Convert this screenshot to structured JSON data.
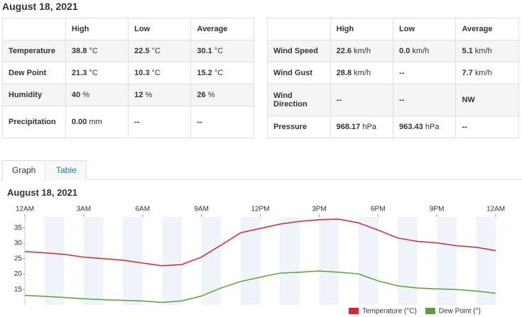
{
  "header": {
    "title": "August 18, 2021"
  },
  "left_table": {
    "columns": [
      "High",
      "Low",
      "Average"
    ],
    "rows": [
      {
        "label": "Temperature",
        "cells": [
          {
            "value": "38.8",
            "unit": "°C"
          },
          {
            "value": "22.5",
            "unit": "°C"
          },
          {
            "value": "30.1",
            "unit": "°C"
          }
        ]
      },
      {
        "label": "Dew Point",
        "cells": [
          {
            "value": "21.3",
            "unit": "°C"
          },
          {
            "value": "10.3",
            "unit": "°C"
          },
          {
            "value": "15.2",
            "unit": "°C"
          }
        ]
      },
      {
        "label": "Humidity",
        "cells": [
          {
            "value": "40",
            "unit": "%"
          },
          {
            "value": "12",
            "unit": "%"
          },
          {
            "value": "26",
            "unit": "%"
          }
        ]
      },
      {
        "label": "Precipitation",
        "cells": [
          {
            "value": "0.00",
            "unit": "mm"
          },
          {
            "value": "--"
          },
          {
            "value": "--"
          }
        ]
      }
    ]
  },
  "right_table": {
    "columns": [
      "High",
      "Low",
      "Average"
    ],
    "rows": [
      {
        "label": "Wind Speed",
        "cells": [
          {
            "value": "22.6",
            "unit": "km/h"
          },
          {
            "value": "0.0",
            "unit": "km/h"
          },
          {
            "value": "5.1",
            "unit": "km/h"
          }
        ]
      },
      {
        "label": "Wind Gust",
        "cells": [
          {
            "value": "28.8",
            "unit": "km/h"
          },
          {
            "value": "--"
          },
          {
            "value": "7.7",
            "unit": "km/h"
          }
        ]
      },
      {
        "label": "Wind Direction",
        "cells": [
          {
            "value": "--"
          },
          {
            "value": "--"
          },
          {
            "value": "NW"
          }
        ]
      },
      {
        "label": "Pressure",
        "cells": [
          {
            "value": "968.17",
            "unit": "hPa"
          },
          {
            "value": "963.43",
            "unit": "hPa"
          },
          {
            "value": "--"
          }
        ]
      }
    ]
  },
  "tabs": [
    "Graph",
    "Table"
  ],
  "chart_data": {
    "type": "line",
    "title": "August 18, 2021",
    "x": [
      0,
      1,
      2,
      3,
      4,
      5,
      6,
      7,
      8,
      9,
      10,
      11,
      12,
      13,
      14,
      15,
      16,
      17,
      18,
      19,
      20,
      21,
      22,
      23,
      24
    ],
    "series": [
      {
        "name": "Temperature (°C)",
        "color": "#d7262f",
        "values": [
          27.3,
          26.9,
          26.4,
          25.5,
          25.0,
          24.5,
          23.6,
          22.7,
          23.1,
          25.5,
          29.4,
          33.4,
          34.8,
          36.2,
          37.1,
          37.6,
          37.8,
          36.6,
          34.3,
          31.7,
          30.6,
          30.1,
          29.2,
          28.7,
          27.6
        ]
      },
      {
        "name": "Dew Point (°)",
        "color": "#5a9e3e",
        "values": [
          13.1,
          12.8,
          12.4,
          12.0,
          11.7,
          11.5,
          11.3,
          10.8,
          11.3,
          12.9,
          15.5,
          17.6,
          19.0,
          20.3,
          20.6,
          21.0,
          20.6,
          20.1,
          17.8,
          16.2,
          15.5,
          15.2,
          15.0,
          14.5,
          13.8
        ]
      }
    ],
    "xlim": [
      0,
      24
    ],
    "xticks": [
      {
        "value": 0,
        "label": "12AM"
      },
      {
        "value": 3,
        "label": "3AM"
      },
      {
        "value": 6,
        "label": "6AM"
      },
      {
        "value": 9,
        "label": "9AM"
      },
      {
        "value": 12,
        "label": "12PM"
      },
      {
        "value": 15,
        "label": "3PM"
      },
      {
        "value": 18,
        "label": "6PM"
      },
      {
        "value": 21,
        "label": "9PM"
      },
      {
        "value": 24,
        "label": "12AM"
      }
    ],
    "ylim": [
      10,
      38.5
    ],
    "yticks": [
      15,
      20,
      25,
      30,
      35
    ],
    "legend": "bottom-right"
  }
}
